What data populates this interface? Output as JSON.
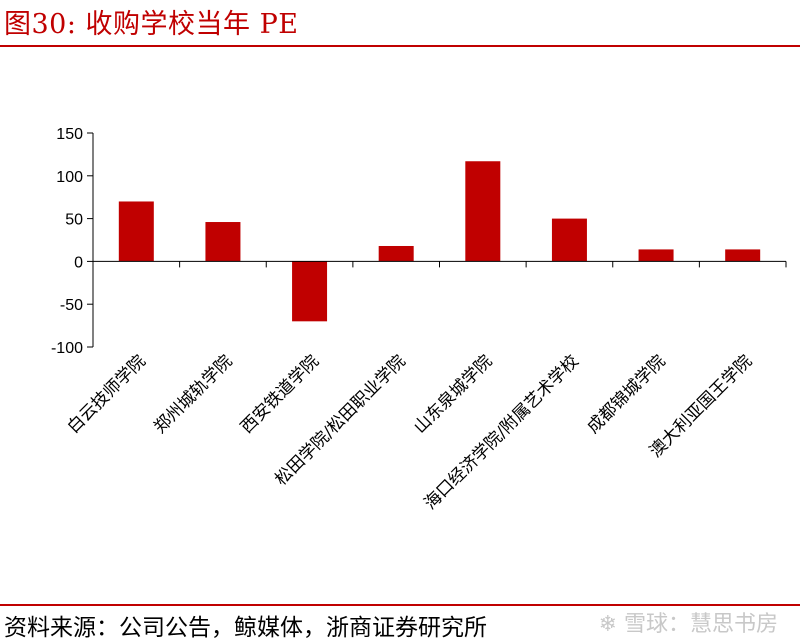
{
  "header": {
    "title": "图30:   收购学校当年 PE"
  },
  "footer": {
    "source": "资料来源：公司公告，鲸媒体，浙商证券研究所",
    "watermark": "❄ 雪球：慧思书房"
  },
  "colors": {
    "accent": "#c00000",
    "bar": "#c00000"
  },
  "chart_data": {
    "type": "bar",
    "categories": [
      "白云技师学院",
      "郑州城轨学院",
      "西安铁道学院",
      "松田学院/松田职业学院",
      "山东泉城学院",
      "海口经济学院/附属艺术学校",
      "成都锦城学院",
      "澳大利亚国王学院"
    ],
    "values": [
      70,
      46,
      -70,
      18,
      117,
      50,
      14,
      14
    ],
    "title": "",
    "xlabel": "",
    "ylabel": "",
    "ylim": [
      -100,
      150
    ],
    "yticks": [
      -100,
      -50,
      0,
      50,
      100,
      150
    ],
    "grid": false,
    "legend": "none"
  }
}
